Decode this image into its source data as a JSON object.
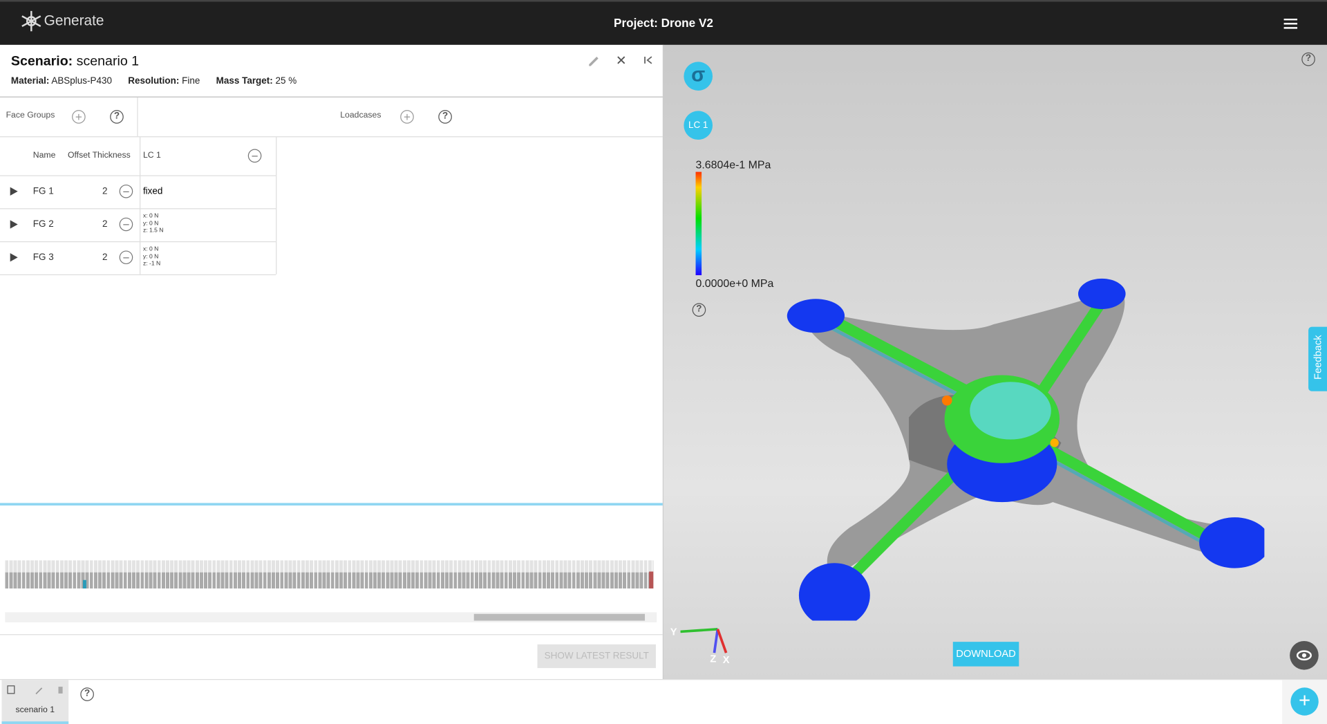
{
  "header": {
    "logo": "Generate",
    "title": "Project: Drone V2"
  },
  "scenario": {
    "label": "Scenario:",
    "name": "scenario 1",
    "material_label": "Material:",
    "material": "ABSplus-P430",
    "resolution_label": "Resolution:",
    "resolution": "Fine",
    "mass_target_label": "Mass Target:",
    "mass_target": "25 %"
  },
  "tabs": {
    "face_groups": "Face Groups",
    "loadcases": "Loadcases"
  },
  "table": {
    "headers": [
      "Name",
      "Offset Thickness",
      "LC 1"
    ],
    "rows": [
      [
        "FG 1",
        "2",
        [
          "fixed"
        ]
      ],
      [
        "FG 2",
        "2",
        [
          "x: 0 N",
          "y: 0 N",
          "z: 1.5 N"
        ]
      ],
      [
        "FG 3",
        "2",
        [
          "x: 0 N",
          "y: 0 N",
          "z: -1 N"
        ]
      ]
    ]
  },
  "viewer": {
    "sigma": "σ",
    "loadcase": "LC 1",
    "legend_max": "3.6804e-1 MPa",
    "legend_min": "0.0000e+0 MPa",
    "axis_y": "Y",
    "axis_z": "Z",
    "axis_x": "X",
    "download": "DOWNLOAD",
    "feedback": "Feedback"
  },
  "history": {
    "show_latest": "SHOW LATEST RESULT"
  },
  "footer": {
    "scenario_tab": "scenario 1"
  }
}
